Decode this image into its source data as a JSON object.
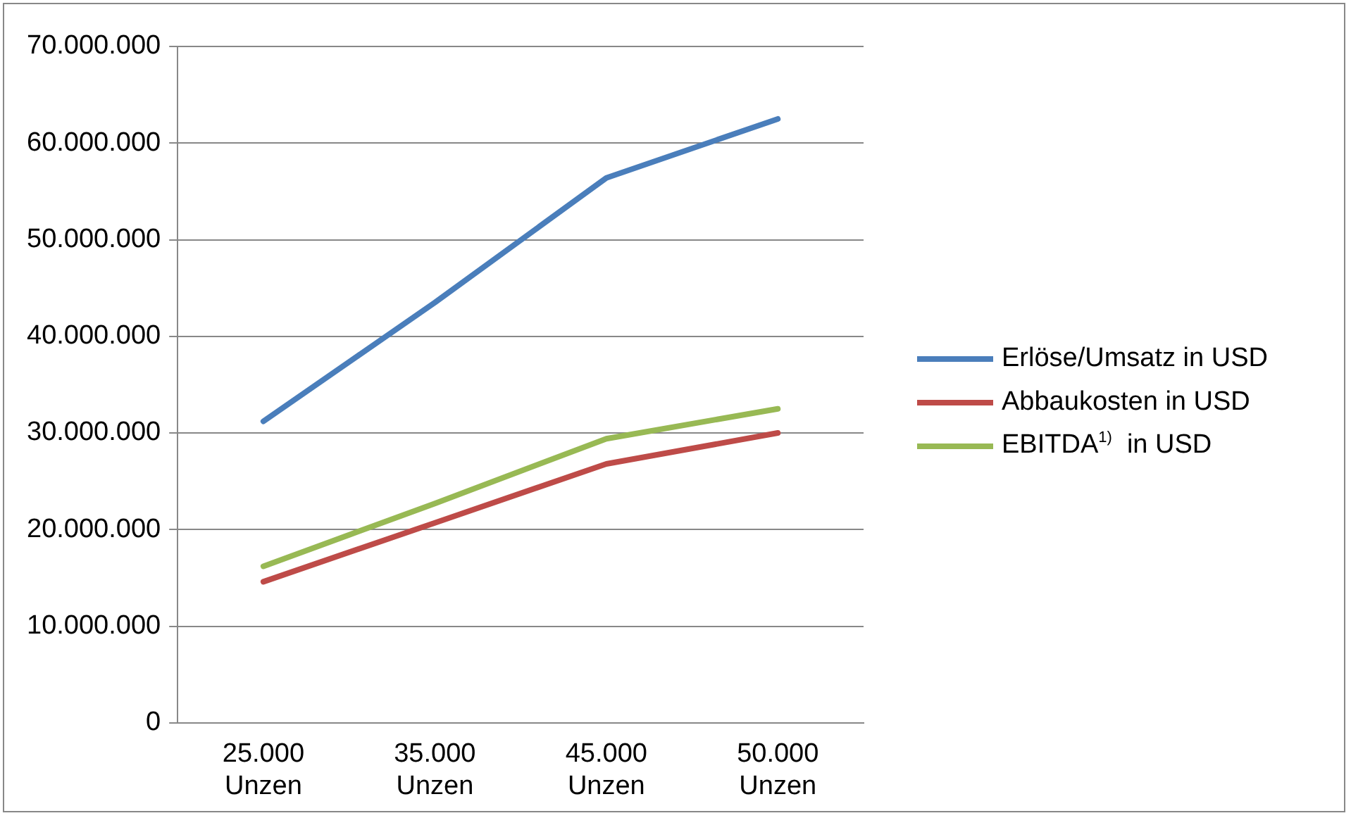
{
  "chart_data": {
    "type": "line",
    "categories": [
      "25.000 Unzen",
      "35.000 Unzen",
      "45.000 Unzen",
      "50.000 Unzen"
    ],
    "series": [
      {
        "name": "Erlöse/Umsatz in USD",
        "color": "#4a7ebb",
        "values": [
          31200000,
          43500000,
          56400000,
          62500000
        ]
      },
      {
        "name": "Abbaukosten in USD",
        "color": "#be4b48",
        "values": [
          14600000,
          20700000,
          26800000,
          30000000
        ]
      },
      {
        "name": "EBITDA$^{1)}$  in USD",
        "color": "#98b954",
        "values": [
          16200000,
          22700000,
          29400000,
          32500000
        ]
      }
    ],
    "ylim": [
      0,
      70000000
    ],
    "yticks": [
      0,
      {
        "value": 10000000,
        "label": "10.000.000"
      },
      {
        "value": 20000000,
        "label": "20.000.000"
      },
      {
        "value": 30000000,
        "label": "30.000.000"
      },
      {
        "value": 40000000,
        "label": "40.000.000"
      },
      {
        "value": 50000000,
        "label": "50.000.000"
      },
      {
        "value": 60000000,
        "label": "60.000.000"
      },
      {
        "value": 70000000,
        "label": "70.000.000"
      }
    ],
    "grid": "y",
    "legend": "right",
    "marker": "none",
    "line_style": "solid"
  }
}
